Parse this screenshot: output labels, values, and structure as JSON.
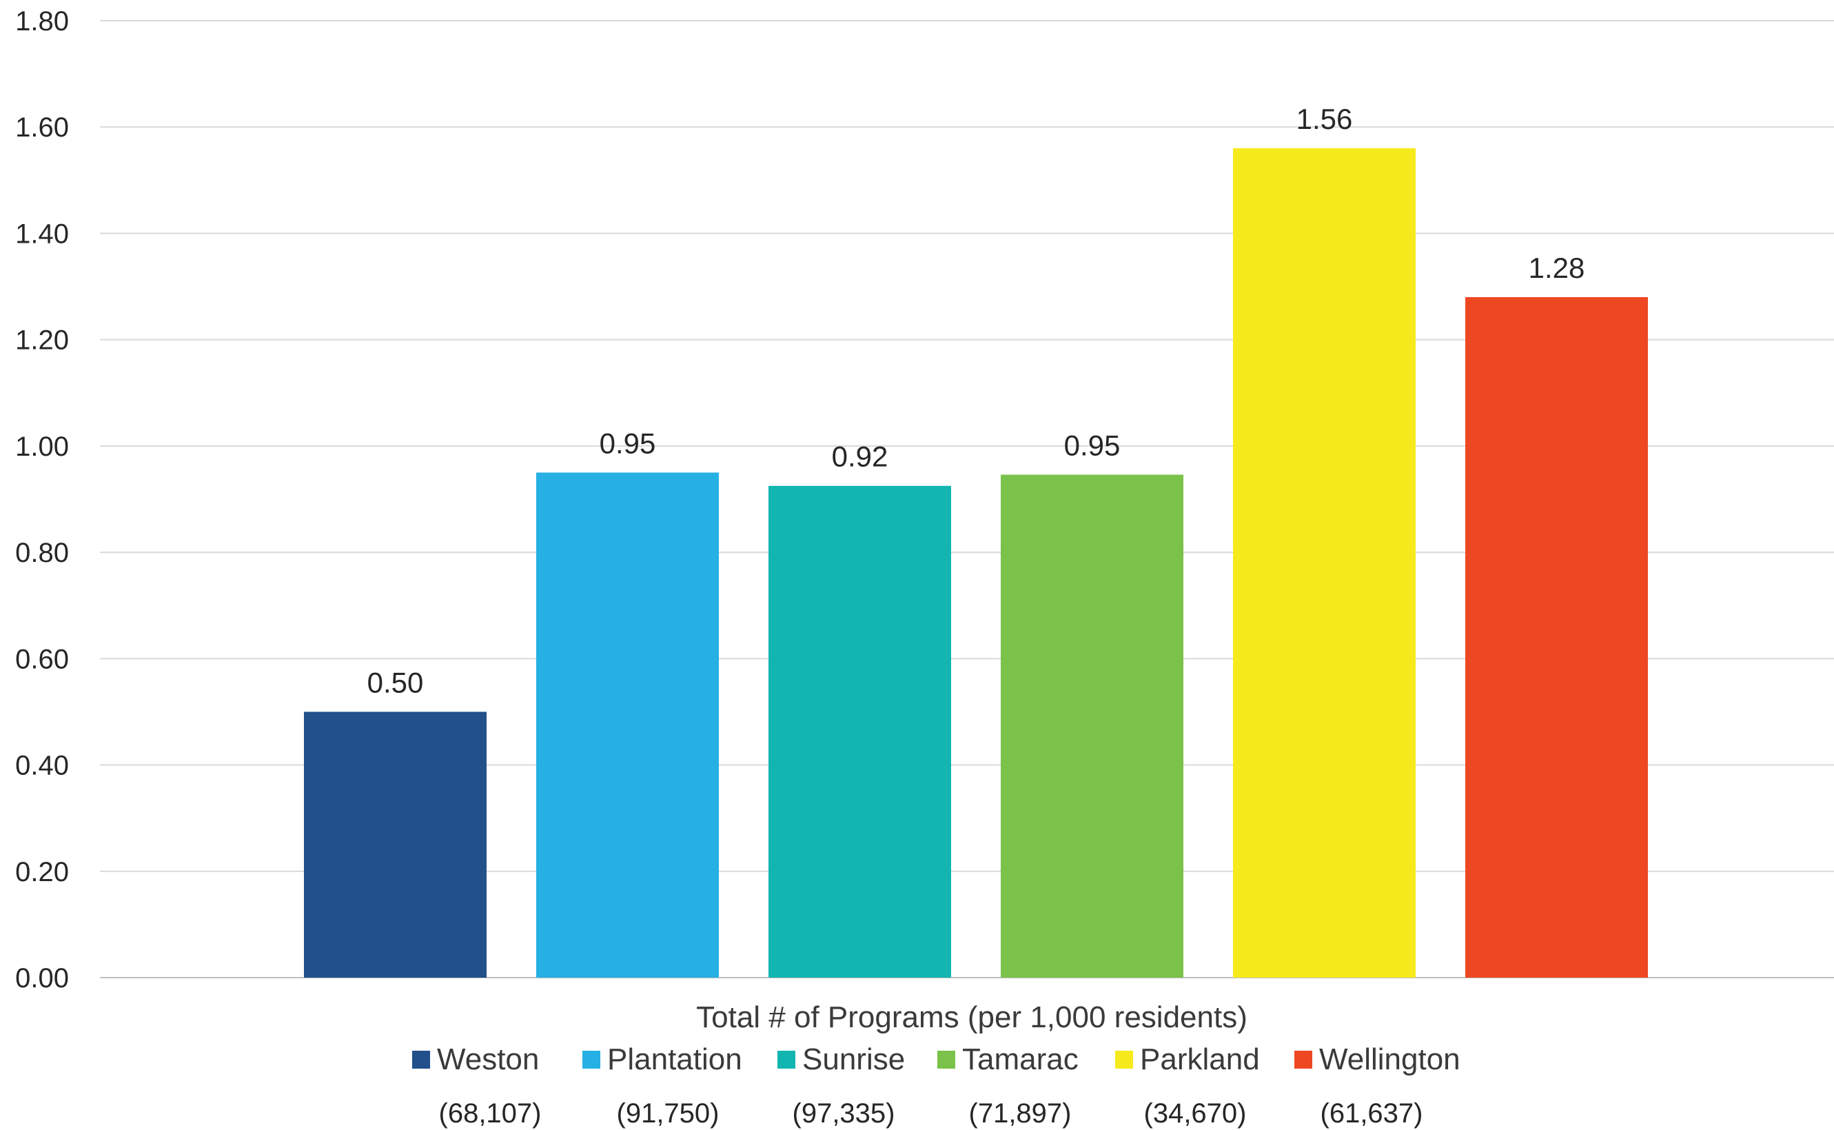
{
  "chart_data": {
    "type": "bar",
    "series": [
      {
        "name": "Weston",
        "value": 0.5,
        "label": "0.50",
        "population": "(68,107)",
        "color": "#21508A"
      },
      {
        "name": "Plantation",
        "value": 0.95,
        "label": "0.95",
        "population": "(91,750)",
        "color": "#26B0E3"
      },
      {
        "name": "Sunrise",
        "value": 0.925,
        "label": "0.92",
        "population": "(97,335)",
        "color": "#13B5B0"
      },
      {
        "name": "Tamarac",
        "value": 0.946,
        "label": "0.95",
        "population": "(71,897)",
        "color": "#7AC24A"
      },
      {
        "name": "Parkland",
        "value": 1.56,
        "label": "1.56",
        "population": "(34,670)",
        "color": "#F6EA1C"
      },
      {
        "name": "Wellington",
        "value": 1.28,
        "label": "1.28",
        "population": "(61,637)",
        "color": "#EE4823"
      }
    ],
    "xlabel": "Total # of Programs (per 1,000 residents)",
    "ylim": [
      0,
      1.8
    ],
    "yticks": [
      "0.00",
      "0.20",
      "0.40",
      "0.60",
      "0.80",
      "1.00",
      "1.20",
      "1.40",
      "1.60",
      "1.80"
    ],
    "grid": true,
    "legend_position": "bottom"
  }
}
